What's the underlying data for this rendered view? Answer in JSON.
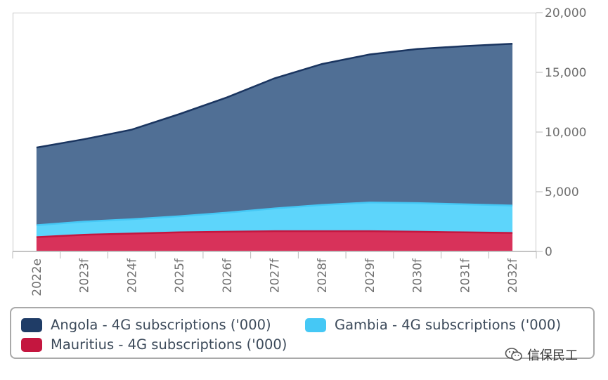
{
  "chart_data": {
    "type": "area",
    "stacked": true,
    "categories": [
      "2022e",
      "2023f",
      "2024f",
      "2025f",
      "2026f",
      "2027f",
      "2028f",
      "2029f",
      "2030f",
      "2031f",
      "2032f"
    ],
    "series": [
      {
        "name": "Mauritius - 4G subscriptions ('000)",
        "color": "#d8325a",
        "line_color": "#c4163f",
        "values": [
          1200,
          1400,
          1500,
          1600,
          1650,
          1700,
          1700,
          1700,
          1650,
          1600,
          1550
        ]
      },
      {
        "name": "Gambia - 4G subscriptions ('000)",
        "color": "#5dd5fb",
        "line_color": "#45c8f5",
        "values": [
          1000,
          1100,
          1200,
          1350,
          1600,
          1900,
          2200,
          2400,
          2400,
          2350,
          2300
        ]
      },
      {
        "name": "Angola - 4G subscriptions ('000)",
        "color": "#506f95",
        "line_color": "#1a3560",
        "values": [
          6500,
          6900,
          7500,
          8550,
          9650,
          10900,
          11800,
          12400,
          12900,
          13250,
          13550
        ]
      }
    ],
    "yticks": [
      "0",
      "5,000",
      "10,000",
      "15,000",
      "20,000"
    ],
    "ylim": [
      0,
      20000
    ],
    "grid": false,
    "y_axis_side": "right",
    "legend_position": "bottom"
  },
  "legend": {
    "items": [
      {
        "label": "Angola - 4G subscriptions ('000)",
        "color": "#1f3c66"
      },
      {
        "label": "Gambia - 4G subscriptions ('000)",
        "color": "#45c8f5"
      },
      {
        "label": "Mauritius - 4G subscriptions ('000)",
        "color": "#c4163f"
      }
    ]
  },
  "watermark": {
    "text": "信保民工"
  }
}
